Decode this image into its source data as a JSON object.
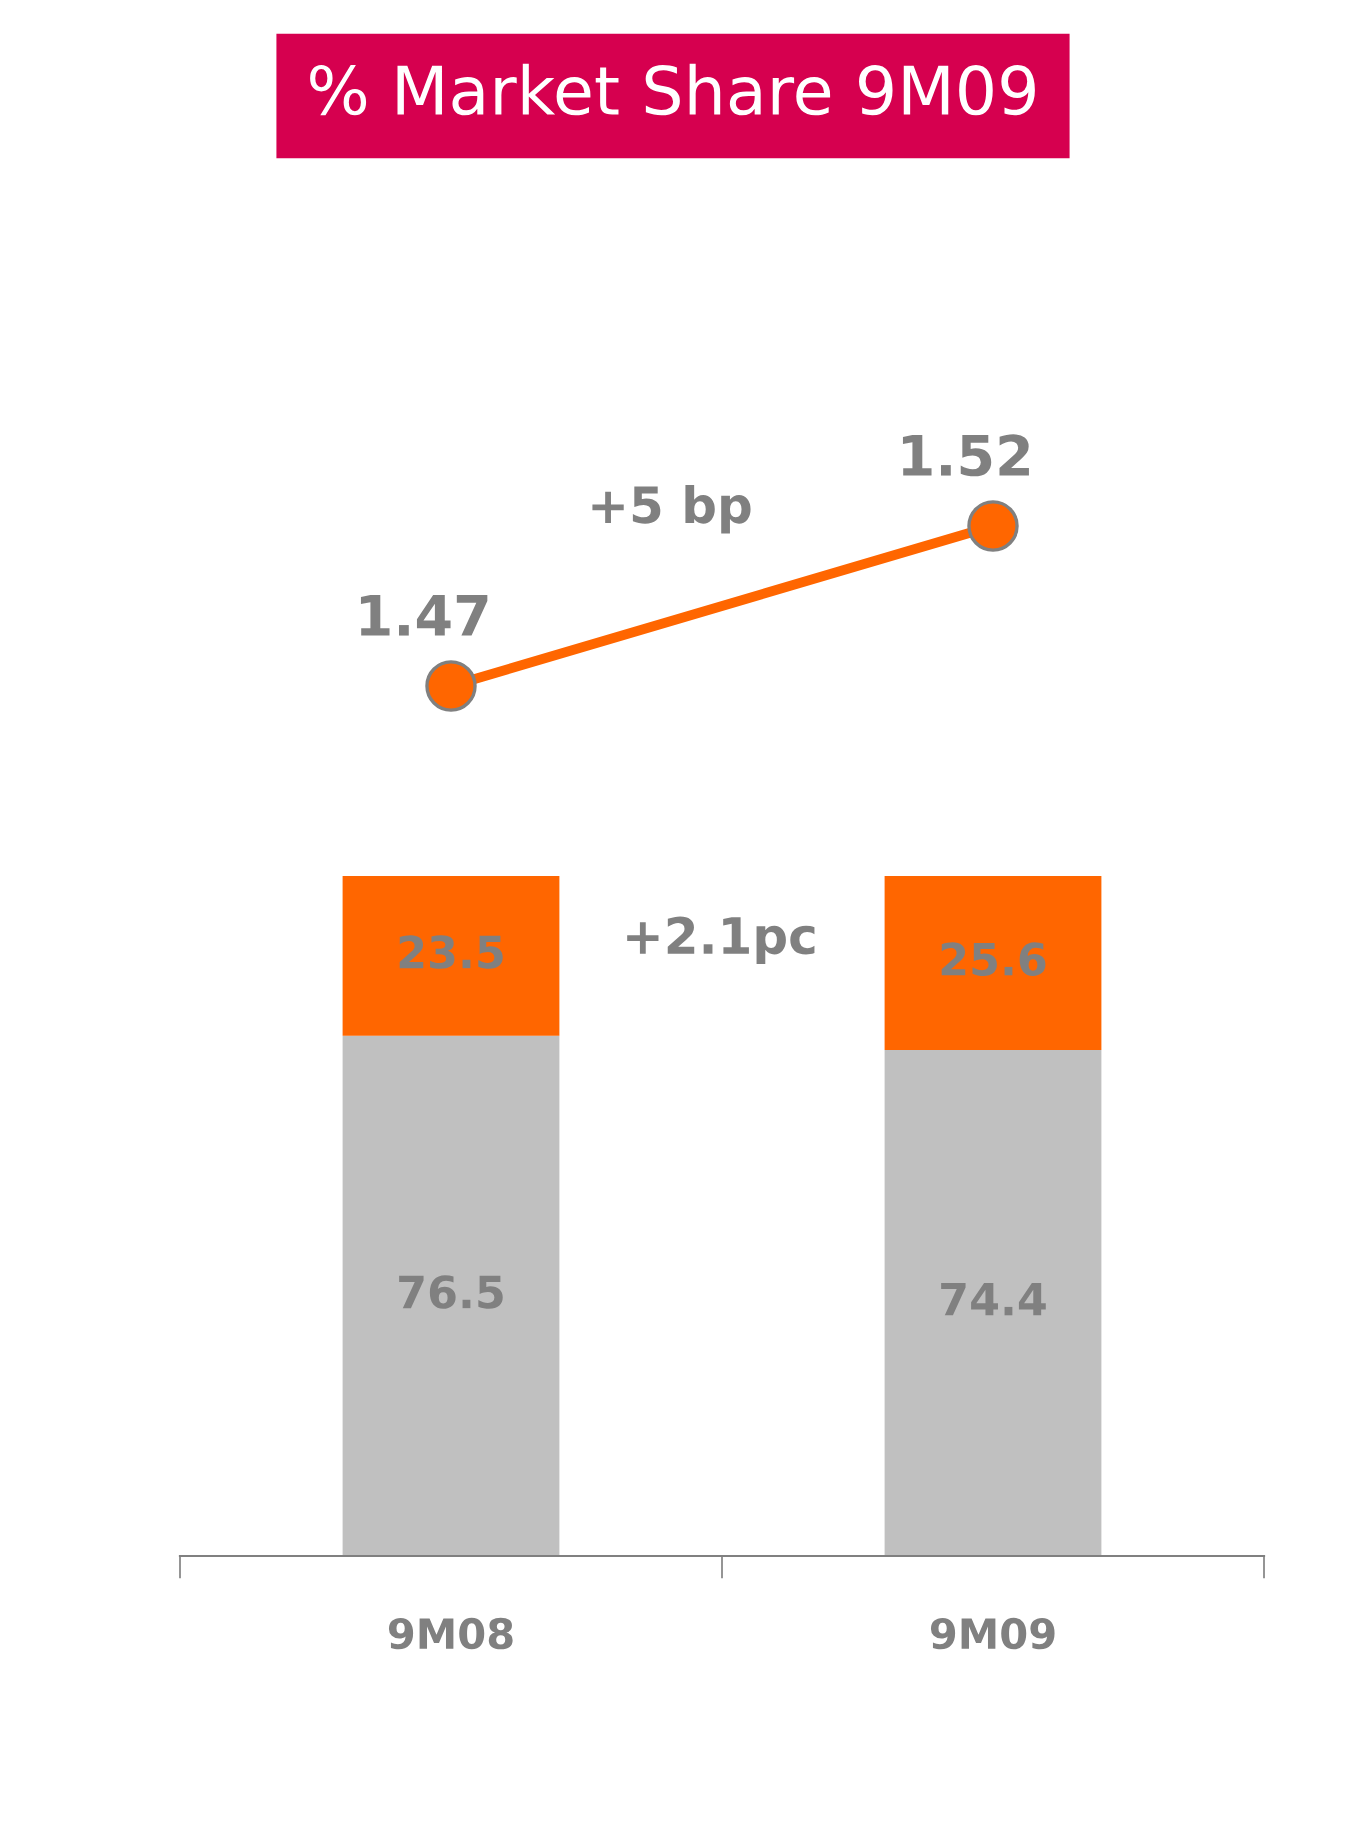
{
  "chart_data": [
    {
      "type": "line",
      "title": "% Market Share 9M09",
      "categories": [
        null,
        null
      ],
      "tick_labels": false,
      "data_labels": true,
      "marker": "circle",
      "line_style": "solid",
      "series": [
        {
          "color": "#ff6600",
          "values": [
            1.47,
            1.52
          ]
        }
      ],
      "annotations": [
        "+5 bp"
      ]
    },
    {
      "type": "bar",
      "stacked": true,
      "categories": [
        "9M08",
        "9M09"
      ],
      "ylim": [
        0,
        100
      ],
      "tick_labels": "x",
      "data_labels": true,
      "series": [
        {
          "color": "#c0c0c0",
          "values": [
            76.5,
            74.4
          ]
        },
        {
          "color": "#ff6600",
          "values": [
            23.5,
            25.6
          ]
        }
      ],
      "annotations": [
        "+2.1pc"
      ]
    }
  ]
}
